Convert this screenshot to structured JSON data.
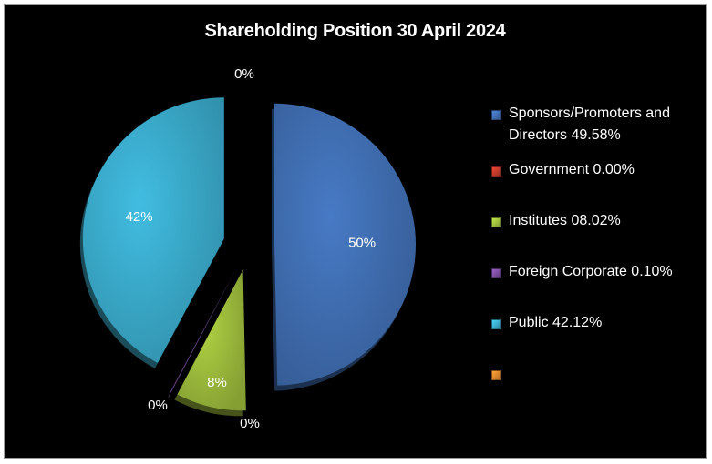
{
  "chart_data": {
    "type": "pie",
    "title": "Shareholding Position 30 April 2024",
    "slices": [
      {
        "label": "Sponsors/Promoters and Directors 49.58%",
        "value": 49.58,
        "data_label": "50%",
        "color": "#3f6db0"
      },
      {
        "label": "Government 0.00%",
        "value": 0.0,
        "data_label": "0%",
        "color": "#c0392b"
      },
      {
        "label": "Institutes 08.02%",
        "value": 8.02,
        "data_label": "8%",
        "color": "#9cbb3c"
      },
      {
        "label": "Foreign Corporate 0.10%",
        "value": 0.1,
        "data_label": "0%",
        "color": "#7a4c9e"
      },
      {
        "label": "Public 42.12%",
        "value": 42.12,
        "data_label": "42%",
        "color": "#3aa9c9"
      },
      {
        "label": "",
        "value": 0.0,
        "data_label": "0%",
        "color": "#e8842c"
      }
    ],
    "legend_position": "right"
  }
}
